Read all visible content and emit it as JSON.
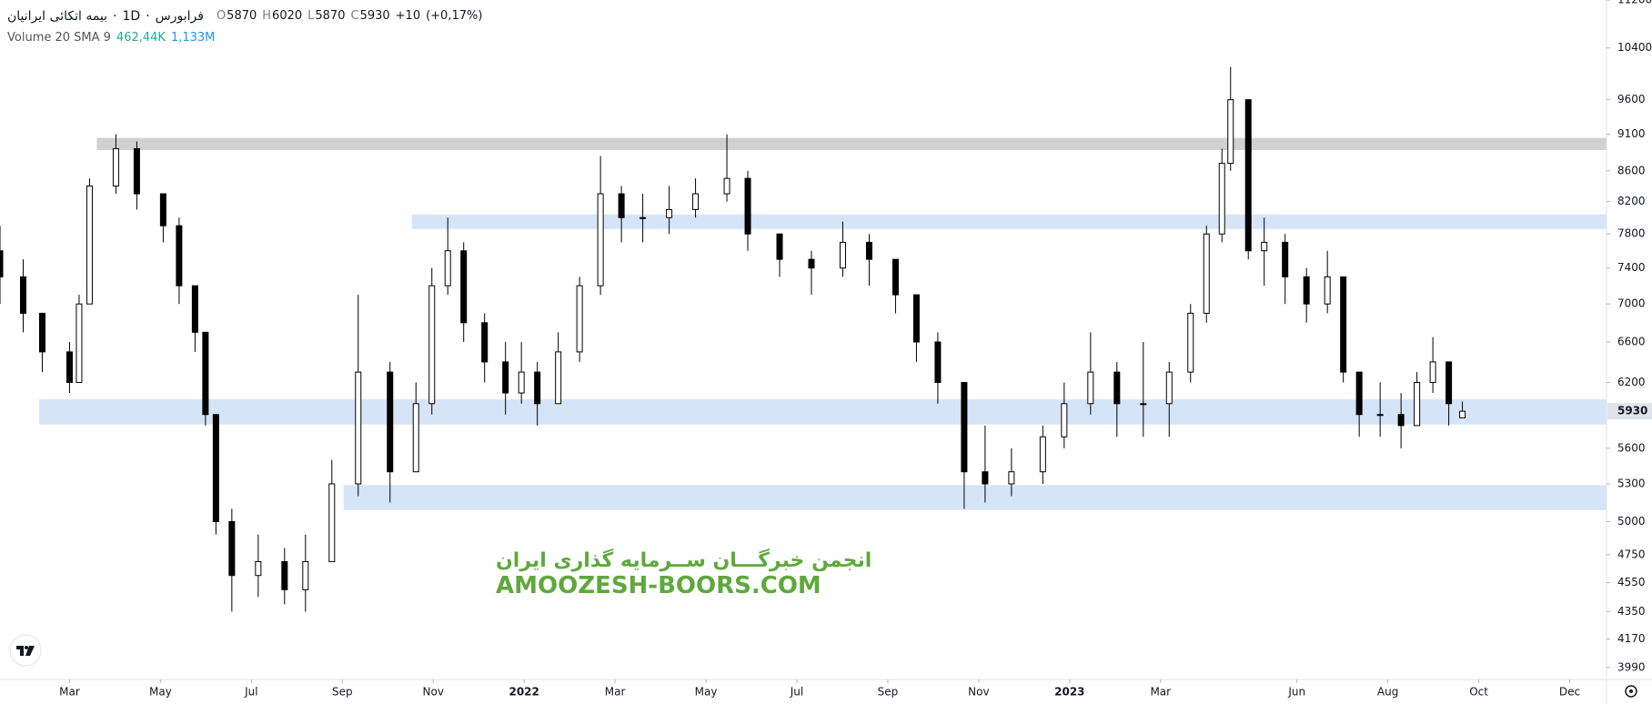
{
  "header": {
    "symbol": "بیمه اتکائی ایرانیان",
    "separator": "·",
    "interval": "1D",
    "exchange": "فرابورس",
    "ohlc": [
      {
        "label": "O",
        "value": 5870
      },
      {
        "label": "H",
        "value": 6020
      },
      {
        "label": "L",
        "value": 5870
      },
      {
        "label": "C",
        "value": 5930
      }
    ],
    "change": "+10",
    "change_pct": "(+0,17%)",
    "volume_label": "Volume 20 SMA 9",
    "volume_value": "462,44K",
    "volume_sma": "1,133M"
  },
  "watermark": {
    "line1": "انجمن خبرگـــان ســرمایه گذاری ایران",
    "line2": "AMOOZESH-BOORS.COM"
  },
  "chart_data": {
    "type": "candlestick",
    "log_scale": true,
    "grid": false,
    "up_color": "#ffffff",
    "down_color": "#000000",
    "outline_color": "#000000",
    "ylim": [
      3917,
      11200
    ],
    "yticks": [
      11200,
      10400,
      9600,
      9100,
      8600,
      8200,
      7800,
      7400,
      7000,
      6600,
      6200,
      5600,
      5300,
      5000,
      4750,
      4550,
      4350,
      4170,
      3990
    ],
    "xlim": [
      0.47,
      35.81
    ],
    "xticks": [
      {
        "value": 2,
        "label": "Mar"
      },
      {
        "value": 4,
        "label": "May"
      },
      {
        "value": 6,
        "label": "Jul"
      },
      {
        "value": 8,
        "label": "Sep"
      },
      {
        "value": 10,
        "label": "Nov"
      },
      {
        "value": 12,
        "label": "2022"
      },
      {
        "value": 14,
        "label": "Mar"
      },
      {
        "value": 16,
        "label": "May"
      },
      {
        "value": 18,
        "label": "Jul"
      },
      {
        "value": 20,
        "label": "Sep"
      },
      {
        "value": 22,
        "label": "Nov"
      },
      {
        "value": 24,
        "label": "2023"
      },
      {
        "value": 26,
        "label": "Mar"
      },
      {
        "value": 29,
        "label": "Jun"
      },
      {
        "value": 31,
        "label": "Aug"
      },
      {
        "value": 33,
        "label": "Oct"
      },
      {
        "value": 35,
        "label": "Dec"
      }
    ],
    "x": [
      0.47,
      0.98,
      1.4,
      2.0,
      2.21,
      2.44,
      3.02,
      3.48,
      4.06,
      4.41,
      4.76,
      4.99,
      5.22,
      5.57,
      6.15,
      6.73,
      7.19,
      7.77,
      8.35,
      9.05,
      9.62,
      9.97,
      10.32,
      10.67,
      11.13,
      11.59,
      11.94,
      12.29,
      12.75,
      13.22,
      13.68,
      14.14,
      14.61,
      15.19,
      15.77,
      16.46,
      16.92,
      17.62,
      18.32,
      19.01,
      19.59,
      20.17,
      20.63,
      21.1,
      21.68,
      22.14,
      22.72,
      23.41,
      23.88,
      24.46,
      25.04,
      25.62,
      26.19,
      26.66,
      27.01,
      27.35,
      27.54,
      27.93,
      28.28,
      28.74,
      29.21,
      29.67,
      30.02,
      30.37,
      30.83,
      31.29,
      31.64,
      31.99,
      32.34,
      32.64
    ],
    "open": [
      7600,
      7300,
      6900,
      6500,
      6200,
      7000,
      8400,
      8900,
      8300,
      7900,
      7200,
      6700,
      5900,
      5000,
      4600,
      4700,
      4500,
      4700,
      5300,
      6300,
      5400,
      6000,
      7200,
      7600,
      6800,
      6400,
      6100,
      6300,
      6000,
      6500,
      7200,
      8300,
      8000,
      8000,
      8100,
      8300,
      8500,
      7800,
      7500,
      7400,
      7700,
      7500,
      7100,
      6600,
      6200,
      5400,
      5300,
      5400,
      5700,
      6000,
      6300,
      6000,
      6000,
      6300,
      6900,
      7800,
      8700,
      9600,
      7600,
      7700,
      7300,
      7000,
      7300,
      6300,
      5900,
      5900,
      5800,
      6200,
      6400,
      5870
    ],
    "high": [
      7900,
      7500,
      6900,
      6600,
      7100,
      8500,
      9100,
      9000,
      8300,
      8000,
      7200,
      6700,
      5900,
      5100,
      4900,
      4800,
      4900,
      5500,
      7100,
      6400,
      6200,
      7400,
      8000,
      7700,
      6900,
      6600,
      6600,
      6400,
      6700,
      7300,
      8800,
      8400,
      8300,
      8400,
      8500,
      9100,
      8600,
      7800,
      7600,
      7950,
      7800,
      7500,
      7100,
      6700,
      6200,
      5800,
      5600,
      5800,
      6200,
      6700,
      6400,
      6600,
      6400,
      7000,
      7900,
      8900,
      10100,
      9600,
      8000,
      7800,
      7400,
      7600,
      7300,
      6300,
      6200,
      6100,
      6300,
      6650,
      6400,
      6020
    ],
    "low": [
      7000,
      6700,
      6300,
      6100,
      6200,
      7000,
      8300,
      8100,
      7700,
      7000,
      6500,
      5800,
      4900,
      4350,
      4450,
      4400,
      4350,
      4700,
      5200,
      5150,
      5400,
      5900,
      7100,
      6600,
      6200,
      5900,
      6000,
      5800,
      6000,
      6400,
      7100,
      7700,
      7700,
      7800,
      8000,
      8200,
      7600,
      7300,
      7100,
      7300,
      7200,
      6900,
      6400,
      6000,
      5100,
      5150,
      5200,
      5300,
      5600,
      5900,
      5700,
      5700,
      5700,
      6200,
      6800,
      7700,
      8600,
      7500,
      7200,
      7000,
      6800,
      6900,
      6200,
      5700,
      5700,
      5600,
      5800,
      6100,
      5800,
      5870
    ],
    "close": [
      7300,
      6900,
      6500,
      6200,
      7000,
      8400,
      8900,
      8300,
      7900,
      7200,
      6700,
      5900,
      5000,
      4600,
      4700,
      4500,
      4700,
      5300,
      6300,
      5400,
      6000,
      7200,
      7600,
      6800,
      6400,
      6100,
      6300,
      6000,
      6500,
      7200,
      8300,
      8000,
      8000,
      8100,
      8300,
      8500,
      7800,
      7500,
      7400,
      7700,
      7500,
      7100,
      6600,
      6200,
      5400,
      5300,
      5400,
      5700,
      6000,
      6300,
      6000,
      6000,
      6300,
      6900,
      7800,
      8700,
      9600,
      7600,
      7700,
      7300,
      7000,
      7300,
      6300,
      5900,
      5900,
      5800,
      6200,
      6400,
      6000,
      5930
    ],
    "zones": [
      {
        "low": 8880,
        "high": 9050,
        "x_start": 2.6,
        "color": "#d1d1d1"
      },
      {
        "low": 7860,
        "high": 8040,
        "x_start": 9.53,
        "color": "#d6e4f8"
      },
      {
        "low": 5810,
        "high": 6040,
        "x_start": 1.33,
        "color": "#d6e4f8"
      },
      {
        "low": 5090,
        "high": 5290,
        "x_start": 8.03,
        "color": "#d6e4f8"
      }
    ]
  }
}
